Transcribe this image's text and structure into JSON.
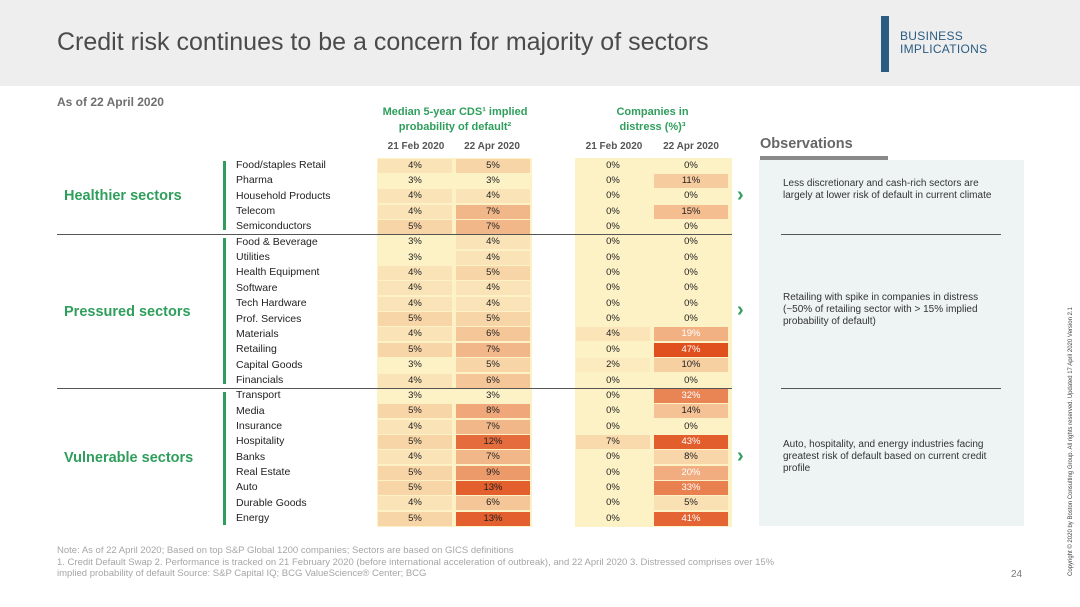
{
  "title": "Credit risk continues to be a concern for majority of sectors",
  "tag": [
    "BUSINESS",
    "IMPLICATIONS"
  ],
  "as_of": "As of 22 April 2020",
  "cds_header": [
    "Median 5-year CDS¹ implied",
    "probability of default²"
  ],
  "distress_header": [
    "Companies in",
    "distress (%)³"
  ],
  "date_labels": [
    "21 Feb 2020",
    "22 Apr 2020",
    "21 Feb 2020",
    "22 Apr 2020"
  ],
  "categories": [
    "Healthier sectors",
    "Pressured sectors",
    "Vulnerable sectors"
  ],
  "rows": [
    {
      "name": "Food/staples Retail",
      "cds_feb": "4%",
      "cds_apr": "5%",
      "dis_feb": "0%",
      "dis_apr": "0%"
    },
    {
      "name": "Pharma",
      "cds_feb": "3%",
      "cds_apr": "3%",
      "dis_feb": "0%",
      "dis_apr": "11%"
    },
    {
      "name": "Household Products",
      "cds_feb": "4%",
      "cds_apr": "4%",
      "dis_feb": "0%",
      "dis_apr": "0%"
    },
    {
      "name": "Telecom",
      "cds_feb": "4%",
      "cds_apr": "7%",
      "dis_feb": "0%",
      "dis_apr": "15%"
    },
    {
      "name": "Semiconductors",
      "cds_feb": "5%",
      "cds_apr": "7%",
      "dis_feb": "0%",
      "dis_apr": "0%"
    },
    {
      "name": "Food & Beverage",
      "cds_feb": "3%",
      "cds_apr": "4%",
      "dis_feb": "0%",
      "dis_apr": "0%"
    },
    {
      "name": "Utilities",
      "cds_feb": "3%",
      "cds_apr": "4%",
      "dis_feb": "0%",
      "dis_apr": "0%"
    },
    {
      "name": "Health Equipment",
      "cds_feb": "4%",
      "cds_apr": "5%",
      "dis_feb": "0%",
      "dis_apr": "0%"
    },
    {
      "name": "Software",
      "cds_feb": "4%",
      "cds_apr": "4%",
      "dis_feb": "0%",
      "dis_apr": "0%"
    },
    {
      "name": "Tech Hardware",
      "cds_feb": "4%",
      "cds_apr": "4%",
      "dis_feb": "0%",
      "dis_apr": "0%"
    },
    {
      "name": "Prof. Services",
      "cds_feb": "5%",
      "cds_apr": "5%",
      "dis_feb": "0%",
      "dis_apr": "0%"
    },
    {
      "name": "Materials",
      "cds_feb": "4%",
      "cds_apr": "6%",
      "dis_feb": "4%",
      "dis_apr": "19%"
    },
    {
      "name": "Retailing",
      "cds_feb": "5%",
      "cds_apr": "7%",
      "dis_feb": "0%",
      "dis_apr": "47%"
    },
    {
      "name": "Capital Goods",
      "cds_feb": "3%",
      "cds_apr": "5%",
      "dis_feb": "2%",
      "dis_apr": "10%"
    },
    {
      "name": "Financials",
      "cds_feb": "4%",
      "cds_apr": "6%",
      "dis_feb": "0%",
      "dis_apr": "0%"
    },
    {
      "name": "Transport",
      "cds_feb": "3%",
      "cds_apr": "3%",
      "dis_feb": "0%",
      "dis_apr": "32%"
    },
    {
      "name": "Media",
      "cds_feb": "5%",
      "cds_apr": "8%",
      "dis_feb": "0%",
      "dis_apr": "14%"
    },
    {
      "name": "Insurance",
      "cds_feb": "4%",
      "cds_apr": "7%",
      "dis_feb": "0%",
      "dis_apr": "0%"
    },
    {
      "name": "Hospitality",
      "cds_feb": "5%",
      "cds_apr": "12%",
      "dis_feb": "7%",
      "dis_apr": "43%"
    },
    {
      "name": "Banks",
      "cds_feb": "4%",
      "cds_apr": "7%",
      "dis_feb": "0%",
      "dis_apr": "8%"
    },
    {
      "name": "Real Estate",
      "cds_feb": "5%",
      "cds_apr": "9%",
      "dis_feb": "0%",
      "dis_apr": "20%"
    },
    {
      "name": "Auto",
      "cds_feb": "5%",
      "cds_apr": "13%",
      "dis_feb": "0%",
      "dis_apr": "33%"
    },
    {
      "name": "Durable Goods",
      "cds_feb": "4%",
      "cds_apr": "6%",
      "dis_feb": "0%",
      "dis_apr": "5%"
    },
    {
      "name": "Energy",
      "cds_feb": "5%",
      "cds_apr": "13%",
      "dis_feb": "0%",
      "dis_apr": "41%"
    }
  ],
  "observations_title": "Observations",
  "observations": [
    "Less discretionary and cash-rich sectors are largely at lower risk of default in current climate",
    "Retailing with spike in companies in distress (~50% of retailing sector with > 15% implied probability of default)",
    "Auto, hospitality, and energy industries facing greatest risk of default based on current credit profile"
  ],
  "notes": [
    "Note: As of 22 April 2020; Based on top S&P Global 1200 companies; Sectors are based on GICS definitions",
    "1. Credit Default Swap    2. Performance is tracked on 21 February 2020 (before international acceleration of outbreak), and 22 April 2020    3. Distressed comprises over 15%",
    "implied probability of default    Source: S&P Capital IQ; BCG ValueScience® Center; BCG"
  ],
  "page_number": "24",
  "copyright": "Copyright © 2020 by Boston Consulting Group. All rights reserved.  Updated 17 April 2020 Version 2.1",
  "colors": {
    "accent_green": "#2f9e5c",
    "brand_blue": "#2b5b80",
    "heat_low": "#fdf2c6",
    "heat_high": "#e0501e"
  }
}
